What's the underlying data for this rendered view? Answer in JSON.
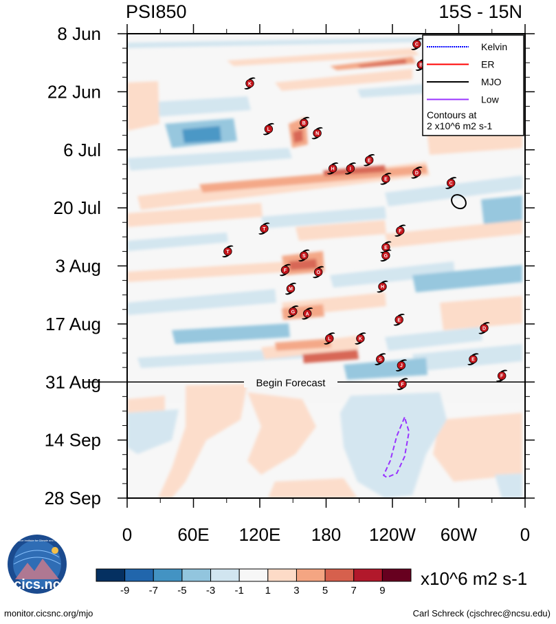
{
  "chart_data": {
    "type": "heatmap",
    "title_left": "PSI850",
    "title_right": "15S - 15N",
    "x_ticks": [
      {
        "lon": 0,
        "label": "0"
      },
      {
        "lon": 60,
        "label": "60E"
      },
      {
        "lon": 120,
        "label": "120E"
      },
      {
        "lon": 180,
        "label": "180"
      },
      {
        "lon": 240,
        "label": "120W"
      },
      {
        "lon": 300,
        "label": "60W"
      },
      {
        "lon": 360,
        "label": "0"
      }
    ],
    "y_ticks": [
      {
        "day": 0,
        "label": "8 Jun"
      },
      {
        "day": 14,
        "label": "22 Jun"
      },
      {
        "day": 28,
        "label": "6 Jul"
      },
      {
        "day": 42,
        "label": "20 Jul"
      },
      {
        "day": 56,
        "label": "3 Aug"
      },
      {
        "day": 70,
        "label": "17 Aug"
      },
      {
        "day": 84,
        "label": "31 Aug"
      },
      {
        "day": 98,
        "label": "14 Sep"
      },
      {
        "day": 112,
        "label": "28 Sep"
      }
    ],
    "y_range_days": [
      0,
      112
    ],
    "x_range_lon": [
      0,
      360
    ],
    "forecast_start_day": 84,
    "forecast_label": "Begin Forecast",
    "legend": [
      {
        "label": "Kelvin",
        "color": "#0000ff",
        "dash": "dotted"
      },
      {
        "label": "ER",
        "color": "#ff0000",
        "dash": "solid"
      },
      {
        "label": "MJO",
        "color": "#000000",
        "dash": "solid"
      },
      {
        "label": "Low",
        "color": "#9933ff",
        "dash": "solid"
      }
    ],
    "contour_note": [
      "Contours at",
      "2 x10^6 m2 s-1"
    ],
    "colorbar": {
      "labels": [
        "-9",
        "-7",
        "-5",
        "-3",
        "-1",
        "1",
        "3",
        "5",
        "7",
        "9"
      ],
      "colors": [
        "#053061",
        "#2166ac",
        "#4393c3",
        "#92c5de",
        "#d1e5f0",
        "#f7f7f7",
        "#fddbc7",
        "#f4a582",
        "#d6604d",
        "#b2182b",
        "#67001f"
      ],
      "units": "x10^6 m2 s-1"
    },
    "storms": [
      {
        "lon": 262,
        "day": 2.5,
        "letter": "C"
      },
      {
        "lon": 266,
        "day": 7.5,
        "letter": "B"
      },
      {
        "lon": 111,
        "day": 12,
        "letter": "K"
      },
      {
        "lon": 128,
        "day": 23,
        "letter": "L"
      },
      {
        "lon": 160,
        "day": 21.5,
        "letter": "B"
      },
      {
        "lon": 172,
        "day": 24,
        "letter": "N"
      },
      {
        "lon": 186,
        "day": 32.5,
        "letter": "H"
      },
      {
        "lon": 202,
        "day": 32.5,
        "letter": "I"
      },
      {
        "lon": 219,
        "day": 30.5,
        "letter": "E"
      },
      {
        "lon": 234,
        "day": 35,
        "letter": "E"
      },
      {
        "lon": 262,
        "day": 33.5,
        "letter": "D"
      },
      {
        "lon": 293,
        "day": 36,
        "letter": "C"
      },
      {
        "lon": 124,
        "day": 47,
        "letter": "T"
      },
      {
        "lon": 247,
        "day": 47.5,
        "letter": "F"
      },
      {
        "lon": 91,
        "day": 52.5,
        "letter": "T"
      },
      {
        "lon": 234,
        "day": 51.5,
        "letter": "E"
      },
      {
        "lon": 234,
        "day": 53.5,
        "letter": "G"
      },
      {
        "lon": 160,
        "day": 53.5,
        "letter": "S"
      },
      {
        "lon": 143,
        "day": 57,
        "letter": "F"
      },
      {
        "lon": 173,
        "day": 57.5,
        "letter": "O"
      },
      {
        "lon": 148,
        "day": 61.5,
        "letter": "M"
      },
      {
        "lon": 231,
        "day": 61,
        "letter": "H"
      },
      {
        "lon": 150,
        "day": 67,
        "letter": "G"
      },
      {
        "lon": 163,
        "day": 67.5,
        "letter": "A"
      },
      {
        "lon": 246,
        "day": 69,
        "letter": "E"
      },
      {
        "lon": 323,
        "day": 71,
        "letter": "D"
      },
      {
        "lon": 183,
        "day": 73.5,
        "letter": "L"
      },
      {
        "lon": 211,
        "day": 73.5,
        "letter": "K"
      },
      {
        "lon": 229,
        "day": 78.5,
        "letter": "S"
      },
      {
        "lon": 248,
        "day": 80,
        "letter": "J"
      },
      {
        "lon": 313,
        "day": 78.5,
        "letter": "E"
      },
      {
        "lon": 339,
        "day": 82.5,
        "letter": "F"
      },
      {
        "lon": 249,
        "day": 84.5,
        "letter": "F"
      }
    ],
    "mjo_contour": {
      "center_lon": 300,
      "center_day": 40.5,
      "rx_lon": 7,
      "ry_day": 1.5
    },
    "low_contour": [
      [
        251,
        92.5
      ],
      [
        244,
        97
      ],
      [
        238,
        103
      ],
      [
        232,
        106.5
      ],
      [
        235,
        107
      ],
      [
        244,
        106
      ],
      [
        251,
        102
      ],
      [
        255,
        96
      ],
      [
        251,
        92.5
      ]
    ]
  },
  "footer": {
    "logo_text": "cics.nc",
    "logo_arc_text": "Cooperative Institute for Climate and Satellites",
    "left": "monitor.cicsnc.org/mjo",
    "right": "Carl Schreck (cjschrec@ncsu.edu)"
  }
}
